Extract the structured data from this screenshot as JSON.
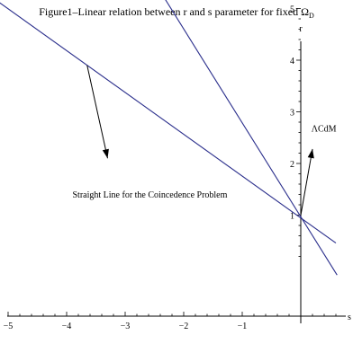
{
  "chart_data": {
    "type": "line",
    "title": "Figure1–Linear relation between r and s parameter for fixed Ω",
    "title_subscript": "D",
    "xlabel": "s",
    "ylabel": "r",
    "xlim": [
      -5,
      0.7
    ],
    "ylim": [
      -0.3,
      5.5
    ],
    "x_ticks": [
      -5,
      -4,
      -3,
      -2,
      -1
    ],
    "y_ticks": [
      1,
      2,
      3,
      4,
      5
    ],
    "grid": false,
    "series": [
      {
        "x": [
          -5.45,
          0.6
        ],
        "y": [
          5.36,
          0.46
        ]
      },
      {
        "x": [
          -2.57,
          0.62
        ],
        "y": [
          5.64,
          -0.16
        ]
      }
    ],
    "annotations": [
      {
        "text": "Straight Line for the Coincedence Problem",
        "x": -3.9,
        "y": 1.34,
        "arrow_from": [
          -3.65,
          3.9
        ],
        "arrow_to": [
          -3.3,
          2.1
        ]
      },
      {
        "text": "ΛCdM",
        "x": 0.18,
        "y": 2.62,
        "arrow_from": [
          0.0,
          1.0
        ],
        "arrow_to": [
          0.2,
          2.28
        ]
      }
    ]
  }
}
